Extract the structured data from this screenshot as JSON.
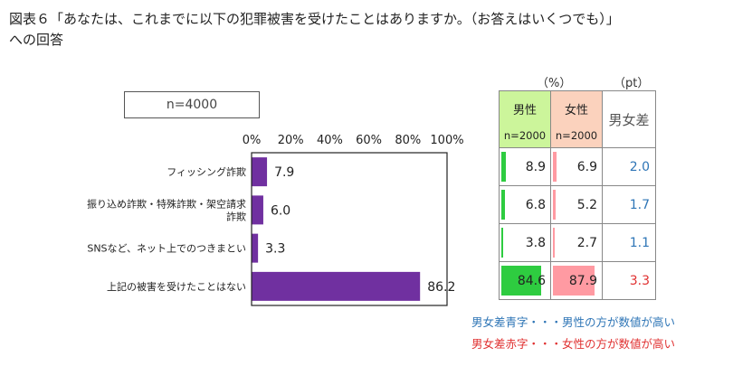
{
  "title_lines": [
    "図表６「あなたは、これまでに以下の犯罪被害を受けたことはありますか。（お答えはいくつでも）」",
    "への回答"
  ],
  "sample_label": "n=4000",
  "chart_data": {
    "type": "bar",
    "orientation": "horizontal",
    "categories": [
      [
        "フィッシング詐欺"
      ],
      [
        "振り込め詐欺・特殊詐欺・架空請求",
        "詐欺"
      ],
      [
        "SNSなど、ネット上でのつきまとい"
      ],
      [
        "上記の被害を受けたことはない"
      ]
    ],
    "values": [
      7.9,
      6.0,
      3.3,
      86.2
    ],
    "value_labels": [
      "7.9",
      "6.0",
      "3.3",
      "86.2"
    ],
    "xlim": [
      0,
      100
    ],
    "ticks": [
      0,
      20,
      40,
      60,
      80,
      100
    ],
    "tick_labels": [
      "0%",
      "20%",
      "40%",
      "60%",
      "80%",
      "100%"
    ],
    "bar_color": "#7030a0"
  },
  "table": {
    "unit_pct": "（%）",
    "unit_pt": "（pt）",
    "headers": {
      "male": "男性",
      "male_n": "n=2000",
      "female": "女性",
      "female_n": "n=2000",
      "diff": "男女差"
    },
    "rows": [
      {
        "male": 8.9,
        "female": 6.9,
        "male_text": "8.9",
        "female_text": "6.9",
        "diff": "2.0",
        "diff_color": "#2e75b6"
      },
      {
        "male": 6.8,
        "female": 5.2,
        "male_text": "6.8",
        "female_text": "5.2",
        "diff": "1.7",
        "diff_color": "#2e75b6"
      },
      {
        "male": 3.8,
        "female": 2.7,
        "male_text": "3.8",
        "female_text": "2.7",
        "diff": "1.1",
        "diff_color": "#2e75b6"
      },
      {
        "male": 84.6,
        "female": 87.9,
        "male_text": "84.6",
        "female_text": "87.9",
        "diff": "3.3",
        "diff_color": "#e03030"
      }
    ],
    "male_bar_color": "#2ecc40",
    "female_bar_color": "#ff9aa2"
  },
  "notes": [
    {
      "text": "男女差青字・・・男性の方が数値が高い",
      "color": "#2e75b6"
    },
    {
      "text": "男女差赤字・・・女性の方が数値が高い",
      "color": "#e03030"
    }
  ]
}
